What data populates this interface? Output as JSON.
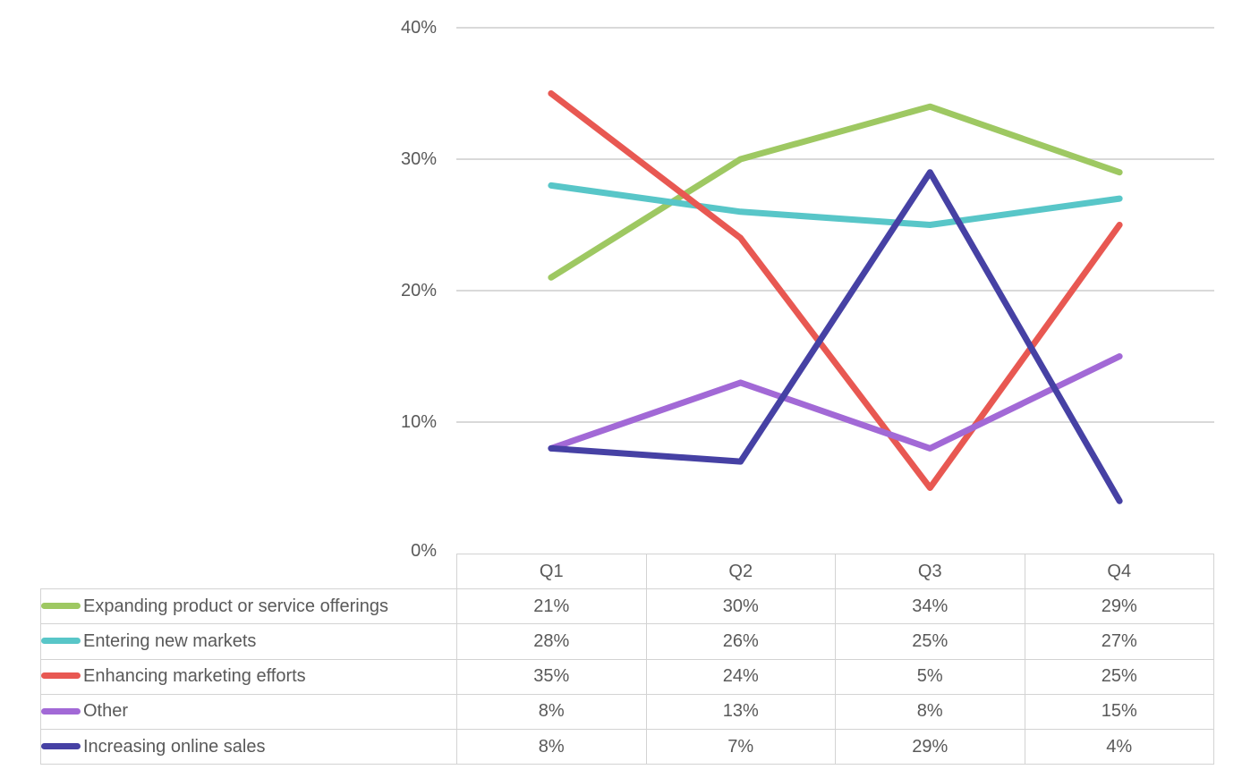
{
  "chart_data": {
    "type": "line",
    "title": "",
    "xlabel": "",
    "ylabel": "",
    "categories": [
      "Q1",
      "Q2",
      "Q3",
      "Q4"
    ],
    "series": [
      {
        "name": "Expanding product or service offerings",
        "color": "#9EC862",
        "values": [
          21,
          30,
          34,
          29
        ]
      },
      {
        "name": "Entering new markets",
        "color": "#58C6C8",
        "values": [
          28,
          26,
          25,
          27
        ]
      },
      {
        "name": "Enhancing marketing efforts",
        "color": "#E85852",
        "values": [
          35,
          24,
          5,
          25
        ]
      },
      {
        "name": "Other",
        "color": "#A269D6",
        "values": [
          8,
          13,
          8,
          15
        ]
      },
      {
        "name": "Increasing online sales",
        "color": "#4641A4",
        "values": [
          8,
          7,
          29,
          4
        ]
      }
    ],
    "ylim": [
      0,
      40
    ],
    "yticks": [
      0,
      10,
      20,
      30,
      40
    ],
    "ytick_labels": [
      "0%",
      "10%",
      "20%",
      "30%",
      "40%"
    ],
    "grid": true,
    "legend_position": "data-table-left",
    "value_format": "percent"
  },
  "data_table": {
    "column_headers": [
      "Q1",
      "Q2",
      "Q3",
      "Q4"
    ],
    "rows": [
      {
        "label": "Expanding product or service offerings",
        "values": [
          "21%",
          "30%",
          "34%",
          "29%"
        ]
      },
      {
        "label": "Entering new markets",
        "values": [
          "28%",
          "26%",
          "25%",
          "27%"
        ]
      },
      {
        "label": "Enhancing marketing efforts",
        "values": [
          "35%",
          "24%",
          "5%",
          "25%"
        ]
      },
      {
        "label": "Other",
        "values": [
          "8%",
          "13%",
          "8%",
          "15%"
        ]
      },
      {
        "label": "Increasing online sales",
        "values": [
          "8%",
          "7%",
          "29%",
          "4%"
        ]
      }
    ]
  },
  "colors": {
    "gridline": "#D9D9D9",
    "table_border": "#D3D3D3",
    "text": "#595959",
    "background": "#FFFFFF"
  }
}
